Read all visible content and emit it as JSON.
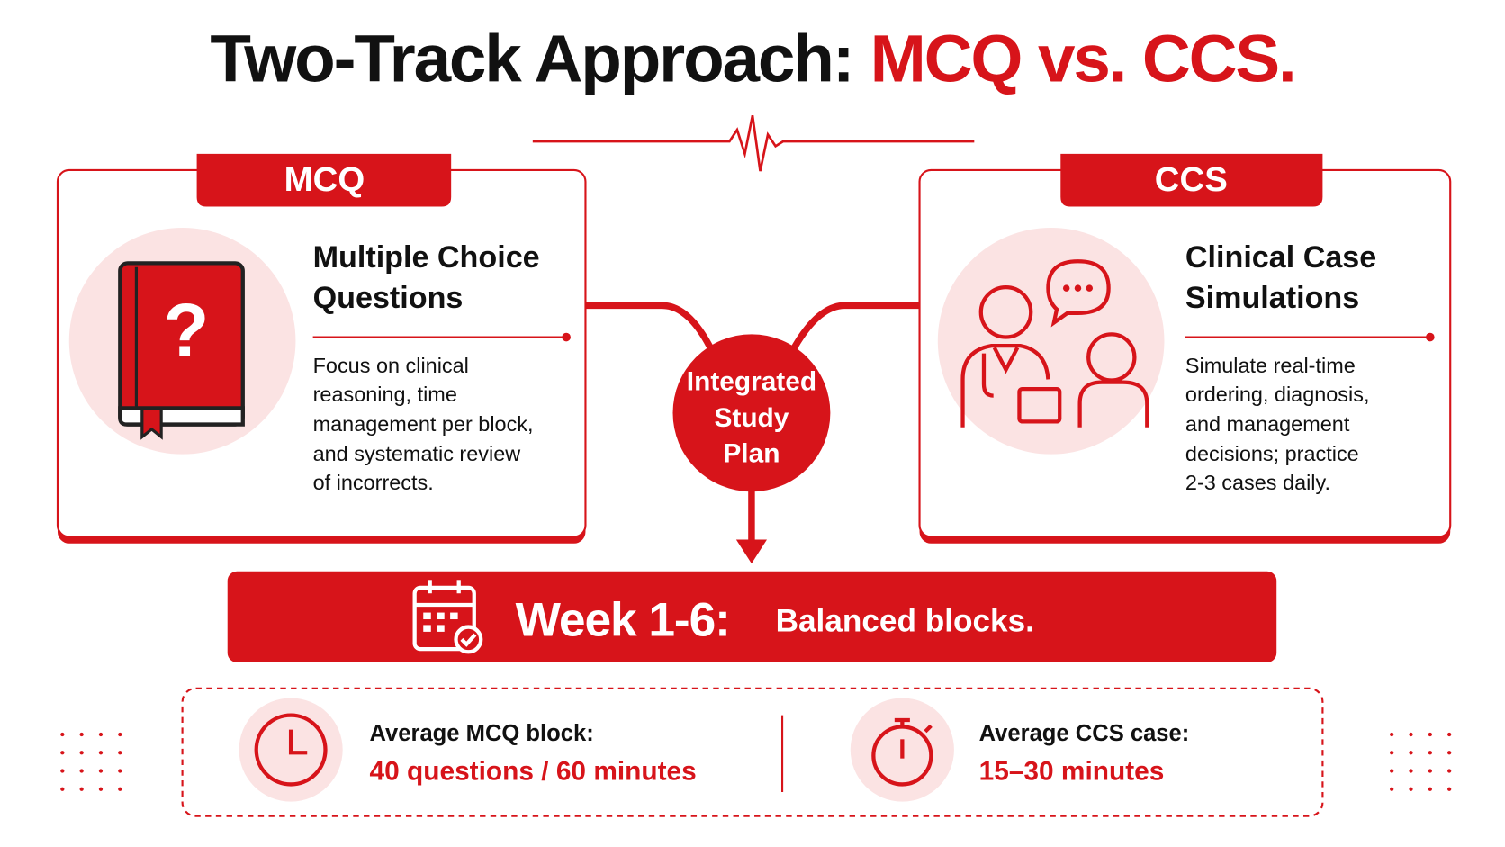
{
  "title": {
    "lead": "Two-Track Approach:",
    "accent": "MCQ vs. CCS."
  },
  "tracks": [
    {
      "tag": "MCQ",
      "heading_lines": [
        "Multiple Choice",
        "Questions"
      ],
      "description_lines": [
        "Focus on clinical",
        "reasoning, time",
        "management per block,",
        "and systematic review",
        "of incorrects."
      ]
    },
    {
      "tag": "CCS",
      "heading_lines": [
        "Clinical Case",
        "Simulations"
      ],
      "description_lines": [
        "Simulate real-time",
        "ordering, diagnosis,",
        "and management",
        "decisions; practice",
        "2-3 cases daily."
      ]
    }
  ],
  "center": {
    "label_lines": [
      "Integrated",
      "Study",
      "Plan"
    ]
  },
  "banner": {
    "emphasis": "Week 1-6:",
    "text": "Balanced blocks."
  },
  "stats": [
    {
      "label": "Average MCQ block:",
      "value": "40 questions / 60 minutes"
    },
    {
      "label": "Average CCS case:",
      "value": "15–30 minutes"
    }
  ]
}
